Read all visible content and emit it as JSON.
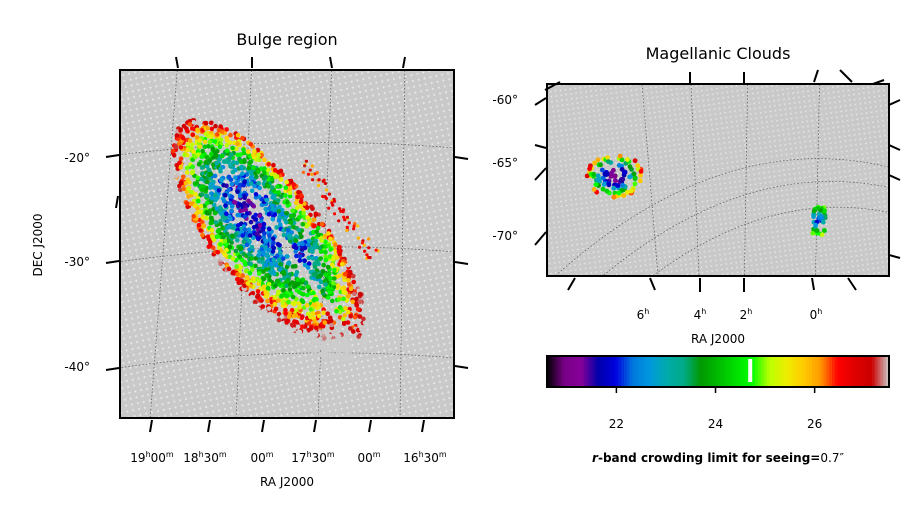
{
  "chart_data": [
    {
      "type": "scatter",
      "projection": "sky map",
      "title": "Bulge region",
      "xlabel": "RA J2000",
      "ylabel": "DEC J2000",
      "x_tick_labels": [
        {
          "h": "19",
          "m": "00"
        },
        {
          "h": "18",
          "m": "30"
        },
        {
          "h": "",
          "m": "00"
        },
        {
          "h": "17",
          "m": "30"
        },
        {
          "h": "",
          "m": "00"
        },
        {
          "h": "16",
          "m": "30"
        }
      ],
      "y_tick_labels": [
        "-20°",
        "-30°",
        "-40°"
      ],
      "ylim": [
        -45,
        -11
      ],
      "grid": true,
      "background_color": "#cccccc",
      "series": [
        {
          "values_desc": "r-band crowding limit per field",
          "min": 20.6,
          "max": 27.5
        }
      ]
    },
    {
      "type": "scatter",
      "projection": "sky map",
      "title": "Magellanic Clouds",
      "xlabel": "RA J2000",
      "ylabel": "",
      "x_tick_labels": [
        "6h",
        "4h",
        "2h",
        "0h"
      ],
      "y_tick_labels": [
        "-60°",
        "-65°",
        "-70°"
      ],
      "grid": true,
      "background_color": "#cccccc"
    }
  ],
  "colorbar": {
    "tick_labels": [
      "22",
      "24",
      "26"
    ],
    "range": [
      20.6,
      27.5
    ],
    "marker_value": 24.7,
    "label_bold": "r-band crowding limit for seeing=",
    "label_value": "0.7″",
    "colormap": "nipy_spectral"
  }
}
